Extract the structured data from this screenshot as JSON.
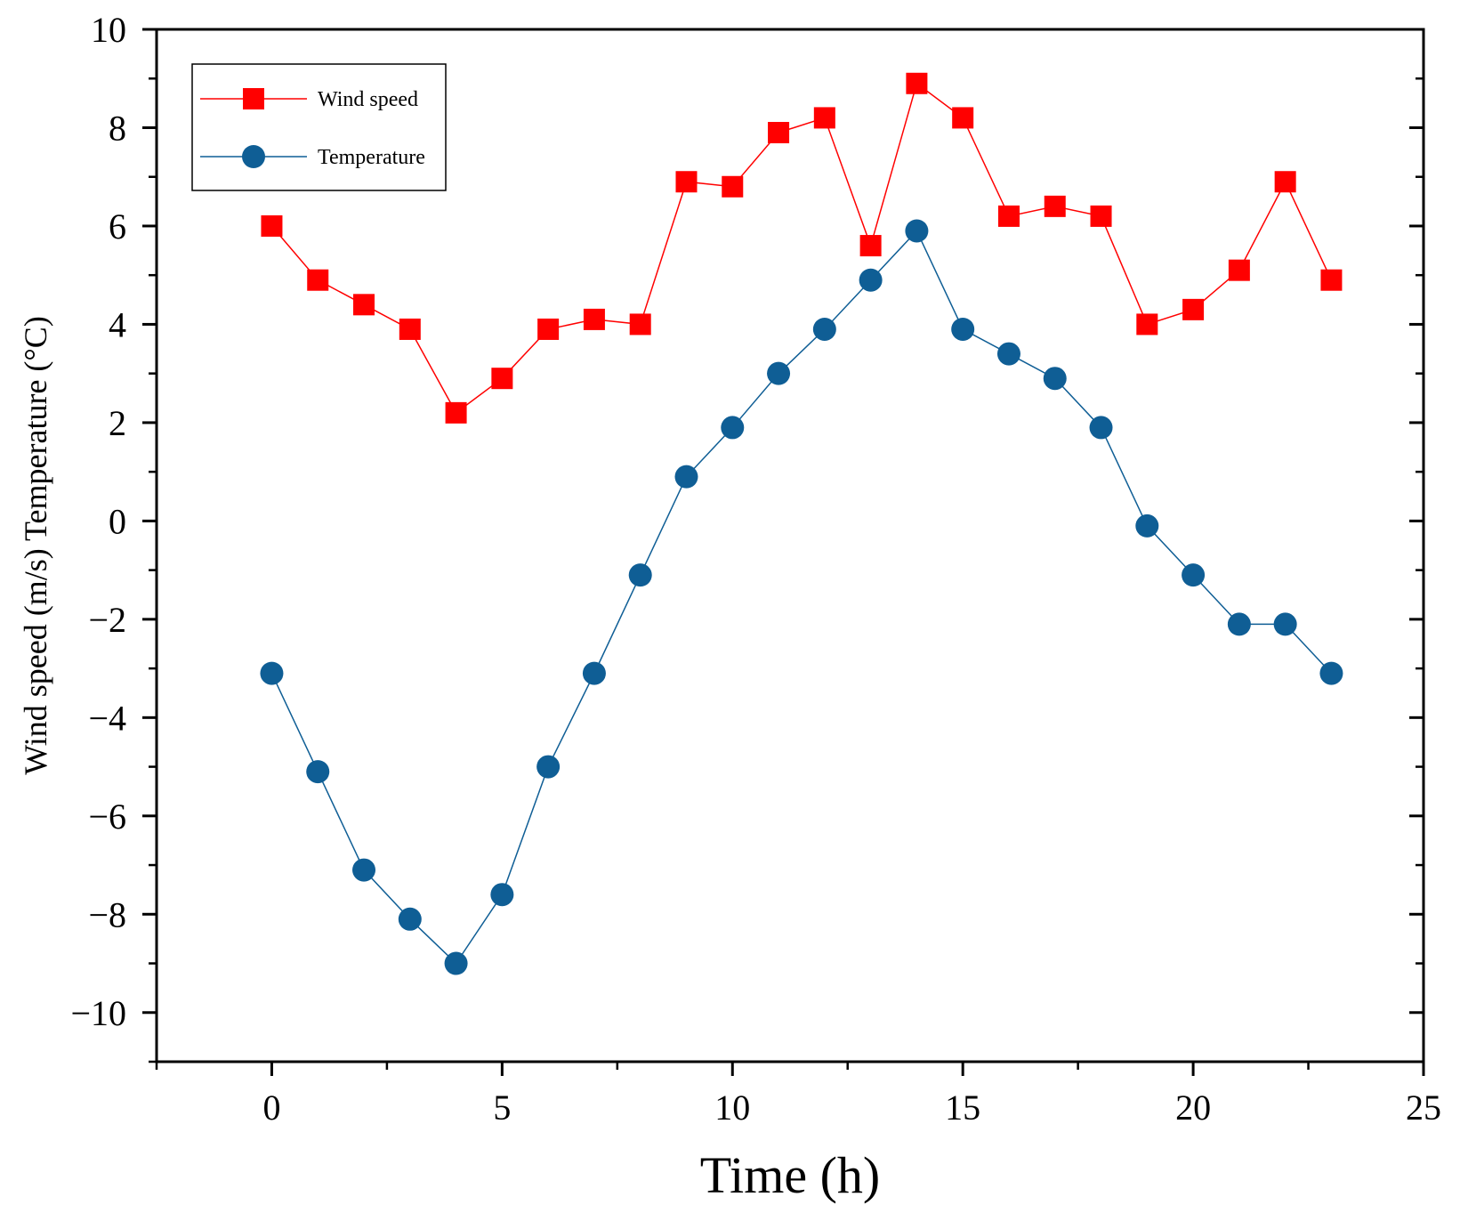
{
  "chart_data": {
    "type": "line",
    "title": "",
    "xlabel": "Time (h)",
    "ylabel": "Wind speed (m/s) Temperature (°C)",
    "xlim": [
      -2.5,
      25
    ],
    "ylim": [
      -11,
      10
    ],
    "grid": false,
    "legend_position": "top-left",
    "x_ticks": [
      0,
      5,
      10,
      15,
      20,
      25
    ],
    "y_ticks": [
      10,
      8,
      6,
      4,
      2,
      0,
      -2,
      -4,
      -6,
      -8,
      -10
    ],
    "x_tick_labels": [
      "0",
      "5",
      "10",
      "15",
      "20",
      "25"
    ],
    "y_tick_labels": [
      "10",
      "8",
      "6",
      "4",
      "2",
      "0",
      "−2",
      "−4",
      "−6",
      "−8",
      "−10"
    ],
    "x": [
      0,
      1,
      2,
      3,
      4,
      5,
      6,
      7,
      8,
      9,
      10,
      11,
      12,
      13,
      14,
      15,
      16,
      17,
      18,
      19,
      20,
      21,
      22,
      23
    ],
    "series": [
      {
        "name": "Wind speed",
        "marker": "square",
        "color": "#ff0000",
        "values": [
          6.0,
          4.9,
          4.4,
          3.9,
          2.2,
          2.9,
          3.9,
          4.1,
          4.0,
          6.9,
          6.8,
          7.9,
          8.2,
          5.6,
          8.9,
          8.2,
          6.2,
          6.4,
          6.2,
          4.0,
          4.3,
          5.1,
          6.9,
          4.9
        ]
      },
      {
        "name": "Temperature",
        "marker": "circle",
        "color": "#0f5e95",
        "values": [
          -3.1,
          -5.1,
          -7.1,
          -8.1,
          -9.0,
          -7.6,
          -5.0,
          -3.1,
          -1.1,
          0.9,
          1.9,
          3.0,
          3.9,
          4.9,
          5.9,
          3.9,
          3.4,
          2.9,
          1.9,
          -0.1,
          -1.1,
          -2.1,
          -2.1,
          -3.1
        ]
      }
    ]
  }
}
